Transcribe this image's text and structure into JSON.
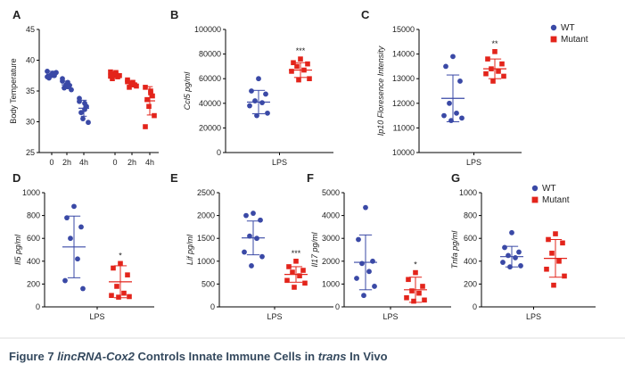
{
  "colors": {
    "wt": "#3a49a6",
    "mutant": "#e3241b",
    "axis": "#000000",
    "caption": "#34495e"
  },
  "legend_top": {
    "wt": "WT",
    "mutant": "Mutant"
  },
  "legend_g": {
    "wt": "WT",
    "mutant": "Mutant"
  },
  "caption": {
    "prefix": "Figure 7 ",
    "gene": "lincRNA-Cox2",
    "middle": " Controls Innate Immune Cells in ",
    "trans": "trans",
    "suffix": " In Vivo"
  },
  "chart_data": [
    {
      "panel": "A",
      "type": "scatter",
      "ylabel": "Body  Temperature",
      "ylim": [
        25,
        45
      ],
      "yticks": [
        "25",
        "30",
        "35",
        "40",
        "45"
      ],
      "categories": [
        "0",
        "2h",
        "4h",
        "0",
        "2h",
        "4h"
      ],
      "series": [
        {
          "name": "WT",
          "group": "wt",
          "x": [
            0,
            1,
            2
          ],
          "points": [
            [
              38.2,
              37.9,
              37.5,
              37.1,
              37.6,
              38.0,
              37.3,
              37.8
            ],
            [
              37.0,
              36.4,
              35.9,
              35.5,
              36.0,
              35.2,
              36.6,
              35.7
            ],
            [
              33.8,
              33.0,
              32.5,
              31.5,
              30.5,
              29.9,
              33.3,
              32.0
            ]
          ],
          "means": [
            37.7,
            36.0,
            32.2
          ],
          "sd": [
            0.5,
            0.6,
            1.3
          ]
        },
        {
          "name": "Mutant",
          "group": "mutant",
          "x": [
            3,
            4,
            5
          ],
          "points": [
            [
              38.1,
              37.7,
              37.3,
              37.0,
              37.8,
              37.5,
              37.4,
              38.0
            ],
            [
              36.8,
              36.4,
              36.0,
              35.6,
              36.2,
              35.8,
              36.5,
              36.0
            ],
            [
              35.6,
              34.7,
              34.2,
              33.6,
              32.5,
              31.0,
              29.2,
              35.0
            ]
          ],
          "means": [
            37.6,
            36.2,
            33.4
          ],
          "sd": [
            0.4,
            0.4,
            2.3
          ]
        }
      ]
    },
    {
      "panel": "B",
      "type": "scatter",
      "ylabel": "Ccl5 pg/ml",
      "ylim": [
        0,
        100000
      ],
      "yticks": [
        "0",
        "20000",
        "40000",
        "60000",
        "80000",
        "100000"
      ],
      "categories": [
        "LPS"
      ],
      "xlabel": "LPS",
      "significance": "***",
      "series": [
        {
          "name": "WT",
          "group": "wt",
          "points": [
            60000,
            50000,
            47500,
            42000,
            40500,
            38000,
            32000,
            30000
          ],
          "mean": 41000,
          "sd": 9500
        },
        {
          "name": "Mutant",
          "group": "mutant",
          "points": [
            76000,
            73000,
            72000,
            70000,
            67000,
            66000,
            60000,
            59000
          ],
          "mean": 67000,
          "sd": 6000
        }
      ]
    },
    {
      "panel": "C",
      "type": "scatter",
      "ylabel": "Ip10 Floresence Intensity",
      "ylim": [
        10000,
        15000
      ],
      "yticks": [
        "10000",
        "11000",
        "12000",
        "13000",
        "14000",
        "15000"
      ],
      "categories": [
        "LPS"
      ],
      "xlabel": "LPS",
      "significance": "**",
      "series": [
        {
          "name": "WT",
          "group": "wt",
          "points": [
            13900,
            13500,
            12900,
            12000,
            11600,
            11500,
            11400,
            11300
          ],
          "mean": 12200,
          "sd": 950
        },
        {
          "name": "Mutant",
          "group": "mutant",
          "points": [
            14100,
            13800,
            13600,
            13400,
            13300,
            13200,
            13100,
            12900
          ],
          "mean": 13400,
          "sd": 400
        }
      ]
    },
    {
      "panel": "D",
      "type": "scatter",
      "ylabel": "Il5 pg/ml",
      "ylim": [
        0,
        1000
      ],
      "yticks": [
        "0",
        "200",
        "400",
        "600",
        "800",
        "1000"
      ],
      "categories": [
        "LPS"
      ],
      "xlabel": "LPS",
      "significance": "*",
      "series": [
        {
          "name": "WT",
          "group": "wt",
          "points": [
            880,
            780,
            700,
            600,
            420,
            230,
            160
          ],
          "mean": 525,
          "sd": 270
        },
        {
          "name": "Mutant",
          "group": "mutant",
          "points": [
            380,
            340,
            280,
            180,
            120,
            100,
            90,
            85
          ],
          "mean": 220,
          "sd": 140
        }
      ]
    },
    {
      "panel": "E",
      "type": "scatter",
      "ylabel": "Lif pg/ml",
      "ylim": [
        0,
        2500
      ],
      "yticks": [
        "0",
        "500",
        "1000",
        "1500",
        "2000",
        "2500"
      ],
      "categories": [
        "LPS"
      ],
      "xlabel": "LPS",
      "significance": "***",
      "series": [
        {
          "name": "WT",
          "group": "wt",
          "points": [
            2050,
            2000,
            1900,
            1550,
            1500,
            1200,
            1100,
            900
          ],
          "mean": 1510,
          "sd": 370
        },
        {
          "name": "Mutant",
          "group": "mutant",
          "points": [
            1000,
            880,
            800,
            760,
            680,
            580,
            520,
            430
          ],
          "mean": 710,
          "sd": 170
        }
      ]
    },
    {
      "panel": "F",
      "type": "scatter",
      "ylabel": "Il17 pg/ml",
      "ylim": [
        0,
        5000
      ],
      "yticks": [
        "0",
        "1000",
        "2000",
        "3000",
        "4000",
        "5000"
      ],
      "categories": [
        "LPS"
      ],
      "xlabel": "LPS",
      "significance": "*",
      "series": [
        {
          "name": "WT",
          "group": "wt",
          "points": [
            4350,
            2950,
            2000,
            1900,
            1550,
            1250,
            900,
            500
          ],
          "mean": 1950,
          "sd": 1200
        },
        {
          "name": "Mutant",
          "group": "mutant",
          "points": [
            1500,
            1200,
            900,
            700,
            600,
            400,
            300,
            250
          ],
          "mean": 750,
          "sd": 550
        }
      ]
    },
    {
      "panel": "G",
      "type": "scatter",
      "ylabel": "Tnfa pg/ml",
      "ylim": [
        0,
        1000
      ],
      "yticks": [
        "0",
        "200",
        "400",
        "600",
        "800",
        "1000"
      ],
      "categories": [
        "LPS"
      ],
      "xlabel": "LPS",
      "significance": "",
      "series": [
        {
          "name": "WT",
          "group": "wt",
          "points": [
            650,
            520,
            480,
            450,
            430,
            390,
            360,
            350
          ],
          "mean": 440,
          "sd": 90
        },
        {
          "name": "Mutant",
          "group": "mutant",
          "points": [
            640,
            590,
            560,
            470,
            400,
            330,
            270,
            190
          ],
          "mean": 425,
          "sd": 165
        }
      ]
    }
  ]
}
